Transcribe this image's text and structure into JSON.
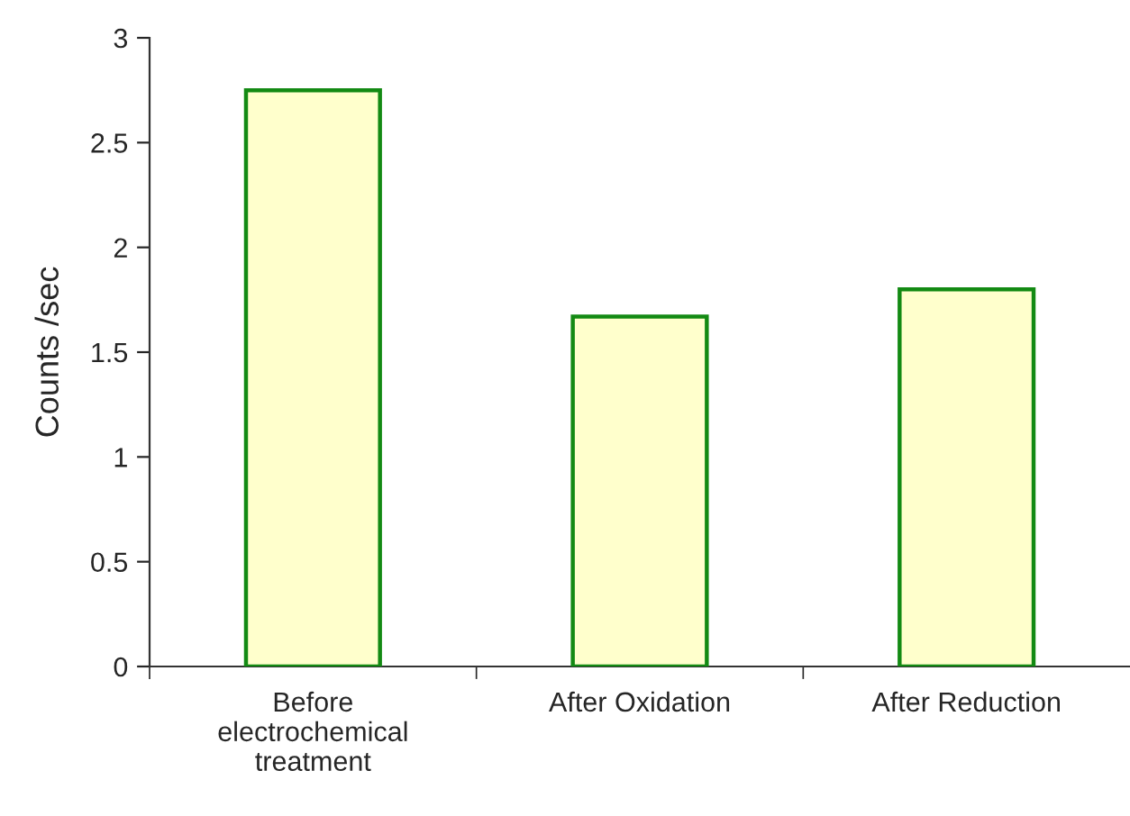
{
  "chart_data": {
    "type": "bar",
    "ylabel": "Counts /sec",
    "categories": [
      "Before\nelectrochemical\ntreatment",
      "After Oxidation",
      "After Reduction"
    ],
    "values": [
      2.75,
      1.67,
      1.8
    ],
    "color": "#ffffcc",
    "ylim": [
      0,
      3
    ],
    "yticks": [
      0,
      0.5,
      1,
      1.5,
      2,
      2.5,
      3
    ],
    "grid": false
  }
}
